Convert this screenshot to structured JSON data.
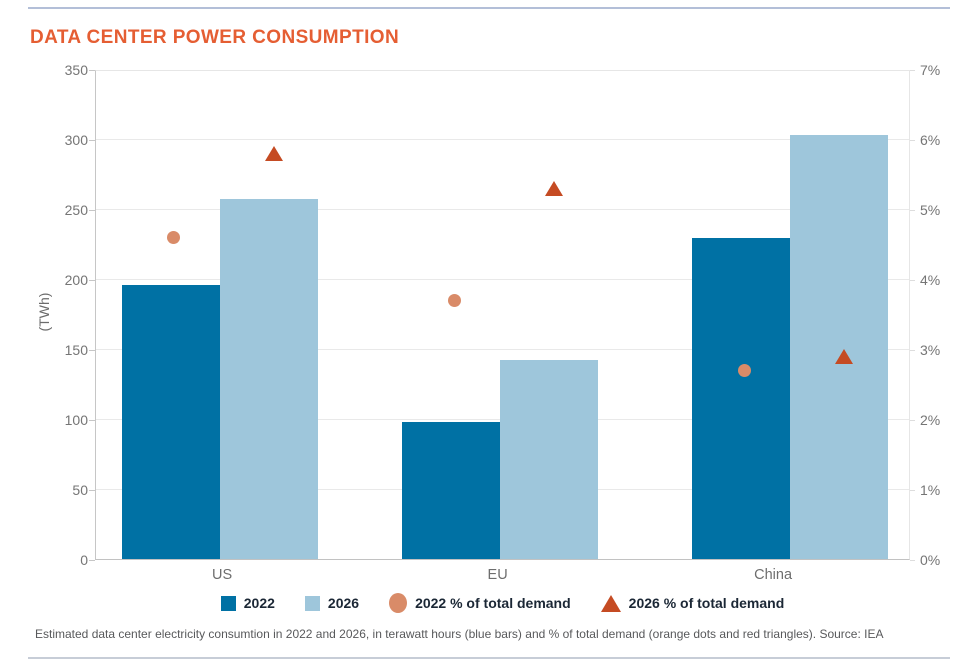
{
  "header": {
    "title": "DATA CENTER POWER CONSUMPTION"
  },
  "chart_data": {
    "type": "bar",
    "subtype": "grouped-bars-with-scatter-overlay-dual-axis",
    "categories": [
      "US",
      "EU",
      "China"
    ],
    "series": [
      {
        "name": "2022",
        "kind": "bar",
        "axis": "left",
        "unit": "TWh",
        "color": "#0071A4",
        "values": [
          196,
          98,
          229
        ]
      },
      {
        "name": "2026",
        "kind": "bar",
        "axis": "left",
        "unit": "TWh",
        "color": "#9EC6DB",
        "values": [
          257,
          142,
          303
        ]
      },
      {
        "name": "2022 % of total demand",
        "kind": "dot",
        "axis": "right",
        "unit": "%",
        "color": "#D98B68",
        "values": [
          4.6,
          3.7,
          2.7
        ]
      },
      {
        "name": "2026 % of total demand",
        "kind": "triangle",
        "axis": "right",
        "unit": "%",
        "color": "#C54B23",
        "values": [
          5.8,
          5.3,
          2.9
        ]
      }
    ],
    "left_axis": {
      "title": "(TWh)",
      "min": 0,
      "max": 350,
      "tick_step": 50,
      "ticks": [
        "350",
        "300",
        "250",
        "200",
        "150",
        "100",
        "50",
        "0"
      ]
    },
    "right_axis": {
      "min": 0,
      "max": 7,
      "tick_step": 1,
      "ticks": [
        "7%",
        "6%",
        "5%",
        "4%",
        "3%",
        "2%",
        "1%",
        "0%"
      ]
    },
    "legend_position": "bottom",
    "grid": "horizontal"
  },
  "footer": {
    "caption": "Estimated data center electricity consumtion in 2022 and 2026, in terawatt hours (blue bars) and % of total demand (orange dots and red triangles). Source: IEA"
  }
}
